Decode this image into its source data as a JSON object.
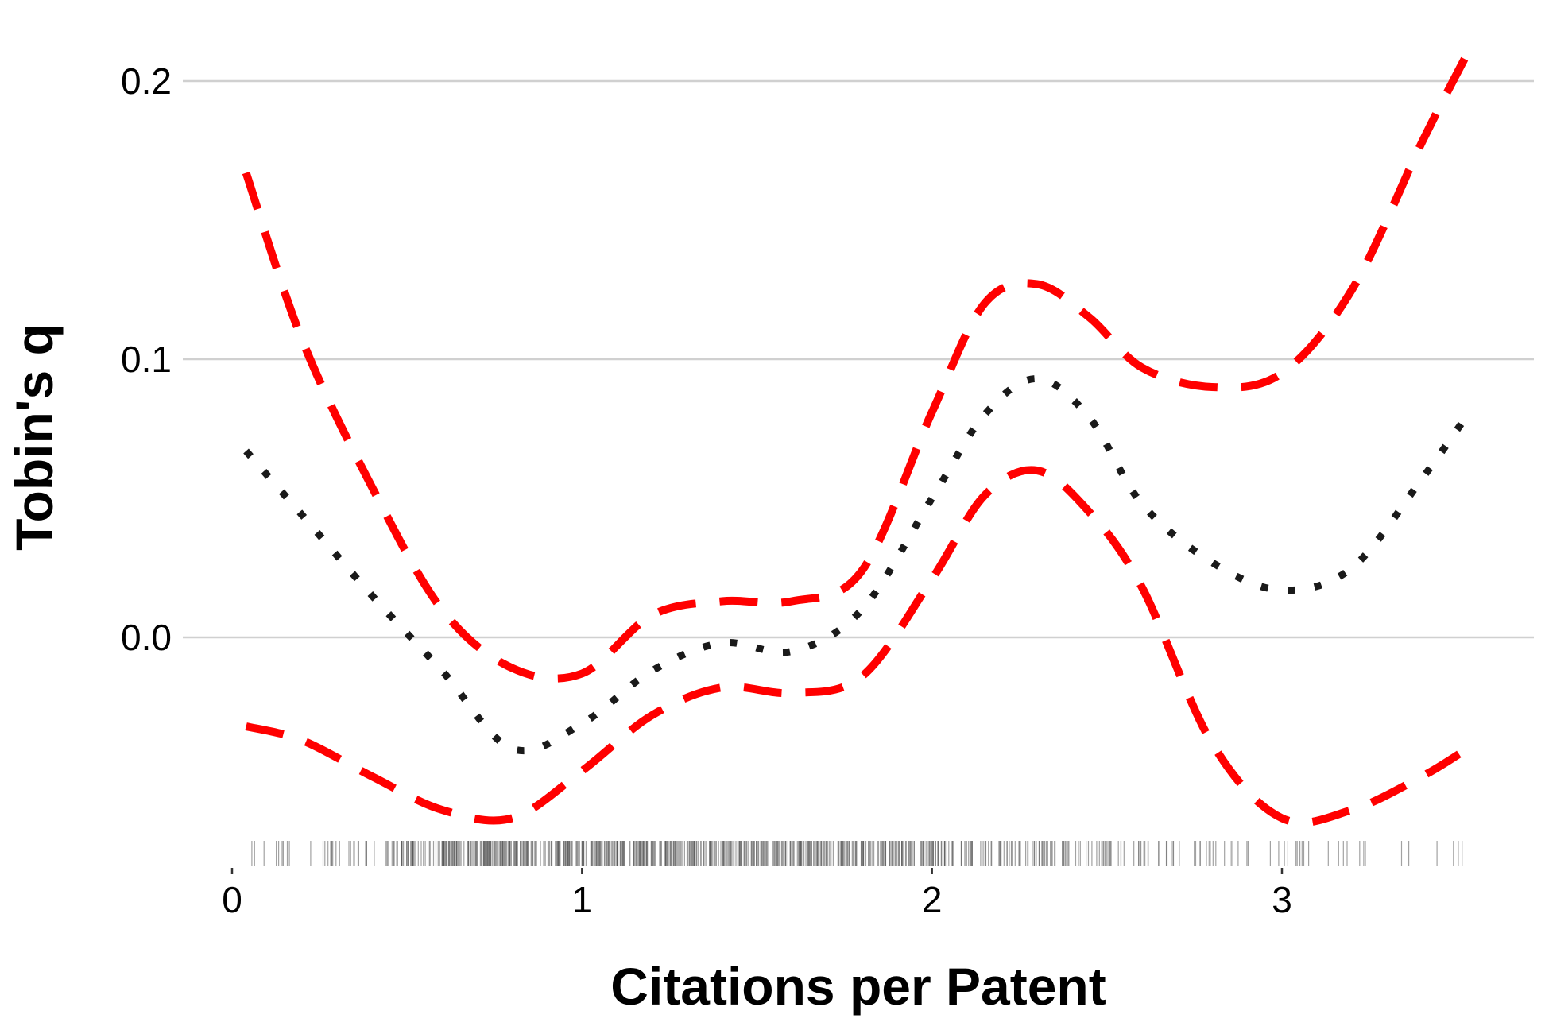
{
  "chart_data": {
    "type": "line",
    "title": "",
    "xlabel": "Citations per Patent",
    "ylabel": "Tobin's q",
    "xlim": [
      0,
      3.6
    ],
    "ylim": [
      -0.075,
      0.22
    ],
    "x_ticks": [
      0,
      1,
      2,
      3
    ],
    "x_tick_labels": [
      "0",
      "1",
      "2",
      "3"
    ],
    "y_ticks": [
      0.0,
      0.1,
      0.2
    ],
    "y_tick_labels": [
      "0.0",
      "0.1",
      "0.2"
    ],
    "grid": "horizontal",
    "legend": "none",
    "series": [
      {
        "role": "estimate",
        "style": "dotted",
        "color": "#1a1a1a",
        "x": [
          0.04,
          0.2,
          0.4,
          0.6,
          0.8,
          1.0,
          1.2,
          1.4,
          1.6,
          1.8,
          2.0,
          2.15,
          2.3,
          2.45,
          2.6,
          2.8,
          3.0,
          3.2,
          3.4,
          3.53
        ],
        "y": [
          0.067,
          0.044,
          0.015,
          -0.012,
          -0.04,
          -0.031,
          -0.012,
          -0.002,
          -0.005,
          0.01,
          0.05,
          0.08,
          0.093,
          0.079,
          0.048,
          0.027,
          0.017,
          0.025,
          0.057,
          0.08
        ]
      },
      {
        "role": "upper-bound",
        "style": "dashed",
        "color": "#ff0000",
        "x": [
          0.04,
          0.2,
          0.4,
          0.6,
          0.8,
          1.0,
          1.2,
          1.4,
          1.6,
          1.8,
          2.0,
          2.15,
          2.3,
          2.45,
          2.6,
          2.8,
          3.0,
          3.2,
          3.4,
          3.53
        ],
        "y": [
          0.167,
          0.107,
          0.054,
          0.01,
          -0.011,
          -0.013,
          0.008,
          0.013,
          0.013,
          0.024,
          0.081,
          0.12,
          0.127,
          0.115,
          0.097,
          0.09,
          0.095,
          0.125,
          0.178,
          0.21
        ]
      },
      {
        "role": "lower-bound",
        "style": "dashed",
        "color": "#ff0000",
        "x": [
          0.04,
          0.2,
          0.4,
          0.6,
          0.8,
          1.0,
          1.2,
          1.4,
          1.6,
          1.8,
          2.0,
          2.15,
          2.3,
          2.45,
          2.6,
          2.8,
          3.0,
          3.2,
          3.4,
          3.53
        ],
        "y": [
          -0.032,
          -0.037,
          -0.05,
          -0.062,
          -0.065,
          -0.048,
          -0.028,
          -0.018,
          -0.02,
          -0.014,
          0.021,
          0.051,
          0.06,
          0.045,
          0.018,
          -0.038,
          -0.065,
          -0.062,
          -0.05,
          -0.04
        ]
      }
    ],
    "rug": {
      "color": "#555555",
      "segments": [
        {
          "from": 0.04,
          "to": 0.25,
          "density": 0.12
        },
        {
          "from": 0.25,
          "to": 0.45,
          "density": 0.3
        },
        {
          "from": 0.45,
          "to": 0.6,
          "density": 0.6
        },
        {
          "from": 0.6,
          "to": 2.05,
          "density": 1.0
        },
        {
          "from": 2.05,
          "to": 2.4,
          "density": 0.55
        },
        {
          "from": 2.4,
          "to": 2.8,
          "density": 0.3
        },
        {
          "from": 2.8,
          "to": 3.2,
          "density": 0.14
        },
        {
          "from": 3.2,
          "to": 3.53,
          "density": 0.07
        }
      ]
    }
  }
}
